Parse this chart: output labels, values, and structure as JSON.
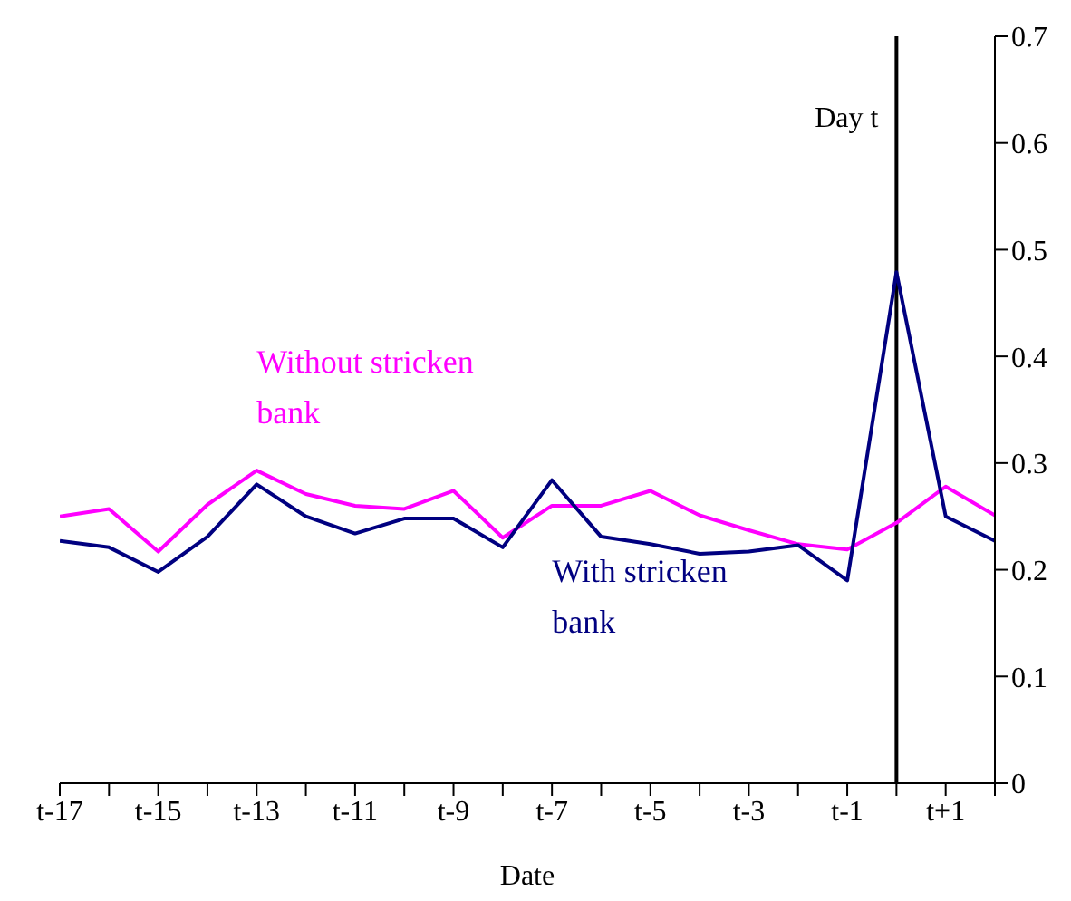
{
  "chart_data": {
    "type": "line",
    "xlabel": "Date",
    "categories": [
      "t-17",
      null,
      "t-15",
      null,
      "t-13",
      null,
      "t-11",
      null,
      "t-9",
      null,
      "t-7",
      null,
      "t-5",
      null,
      "t-3",
      null,
      "t-1",
      null,
      "t+1",
      null
    ],
    "ylim": [
      0,
      0.7
    ],
    "yticks": [
      0,
      0.1,
      0.2,
      0.3,
      0.4,
      0.5,
      0.6,
      0.7
    ],
    "series": [
      {
        "name": "Without stricken bank",
        "color": "#ff00ff",
        "values": [
          0.25,
          0.257,
          0.217,
          0.261,
          0.293,
          0.271,
          0.26,
          0.257,
          0.274,
          0.23,
          0.26,
          0.26,
          0.274,
          0.251,
          0.237,
          0.224,
          0.219,
          0.244,
          0.278,
          0.251
        ]
      },
      {
        "name": "With stricken bank",
        "color": "#000080",
        "values": [
          0.227,
          0.221,
          0.198,
          0.231,
          0.28,
          0.25,
          0.234,
          0.248,
          0.248,
          0.221,
          0.284,
          0.231,
          0.224,
          0.215,
          0.217,
          0.223,
          0.19,
          0.479,
          0.25,
          0.227
        ]
      }
    ],
    "annotations": [
      "Day t"
    ],
    "grid": false,
    "legend": false,
    "marker": "none",
    "line_style": "solid"
  }
}
